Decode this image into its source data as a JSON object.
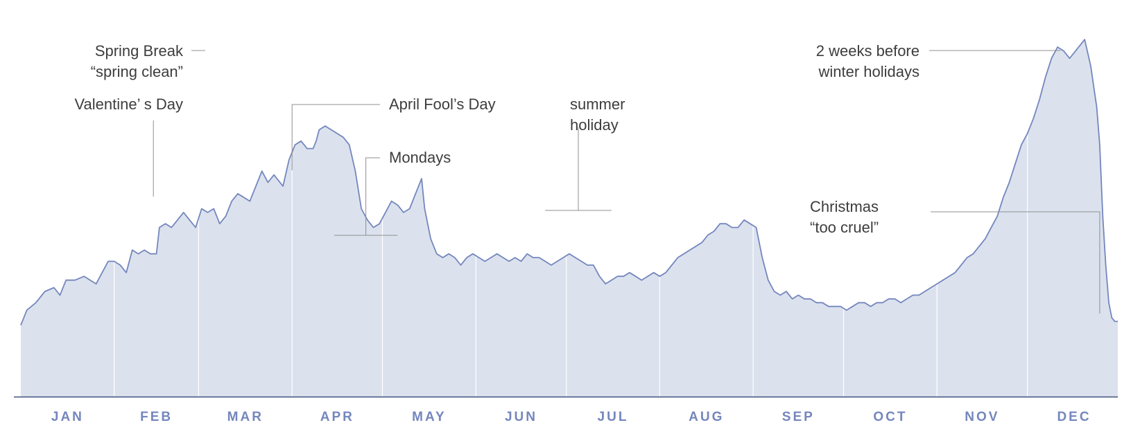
{
  "chart_data": {
    "type": "area",
    "title": "",
    "xlabel": "",
    "ylabel": "",
    "x_unit": "day of year",
    "xlim": [
      1,
      365
    ],
    "ylim": [
      0,
      100
    ],
    "grid": false,
    "vertical_month_dividers": true,
    "months": [
      "JAN",
      "FEB",
      "MAR",
      "APR",
      "MAY",
      "JUN",
      "JUL",
      "AUG",
      "SEP",
      "OCT",
      "NOV",
      "DEC"
    ],
    "colors": {
      "fill": "#dbe2ee",
      "line": "#7486bd",
      "month_label": "#7486bd",
      "divider": "#ffffff",
      "baseline": "#3f4f7a"
    },
    "series": [
      {
        "points": [
          [
            1,
            19
          ],
          [
            3,
            23
          ],
          [
            6,
            25
          ],
          [
            9,
            28
          ],
          [
            12,
            29
          ],
          [
            14,
            27
          ],
          [
            16,
            31
          ],
          [
            19,
            31
          ],
          [
            22,
            32
          ],
          [
            24,
            31
          ],
          [
            26,
            30
          ],
          [
            28,
            33
          ],
          [
            30,
            36
          ],
          [
            32,
            36
          ],
          [
            34,
            35
          ],
          [
            36,
            33
          ],
          [
            38,
            39
          ],
          [
            40,
            38
          ],
          [
            42,
            39
          ],
          [
            44,
            38
          ],
          [
            46,
            38
          ],
          [
            47,
            45
          ],
          [
            49,
            46
          ],
          [
            51,
            45
          ],
          [
            53,
            47
          ],
          [
            55,
            49
          ],
          [
            57,
            47
          ],
          [
            59,
            45
          ],
          [
            61,
            50
          ],
          [
            63,
            49
          ],
          [
            65,
            50
          ],
          [
            67,
            46
          ],
          [
            69,
            48
          ],
          [
            71,
            52
          ],
          [
            73,
            54
          ],
          [
            75,
            53
          ],
          [
            77,
            52
          ],
          [
            79,
            56
          ],
          [
            81,
            60
          ],
          [
            83,
            57
          ],
          [
            85,
            59
          ],
          [
            86,
            58
          ],
          [
            88,
            56
          ],
          [
            90,
            63
          ],
          [
            92,
            67
          ],
          [
            94,
            68
          ],
          [
            96,
            66
          ],
          [
            98,
            66
          ],
          [
            99,
            68
          ],
          [
            100,
            71
          ],
          [
            102,
            72
          ],
          [
            104,
            71
          ],
          [
            106,
            70
          ],
          [
            108,
            69
          ],
          [
            110,
            67
          ],
          [
            112,
            60
          ],
          [
            114,
            50
          ],
          [
            116,
            47
          ],
          [
            118,
            45
          ],
          [
            120,
            46
          ],
          [
            122,
            49
          ],
          [
            124,
            52
          ],
          [
            126,
            51
          ],
          [
            128,
            49
          ],
          [
            130,
            50
          ],
          [
            132,
            54
          ],
          [
            134,
            58
          ],
          [
            135,
            50
          ],
          [
            137,
            42
          ],
          [
            139,
            38
          ],
          [
            141,
            37
          ],
          [
            143,
            38
          ],
          [
            145,
            37
          ],
          [
            147,
            35
          ],
          [
            149,
            37
          ],
          [
            151,
            38
          ],
          [
            153,
            37
          ],
          [
            155,
            36
          ],
          [
            157,
            37
          ],
          [
            159,
            38
          ],
          [
            161,
            37
          ],
          [
            163,
            36
          ],
          [
            165,
            37
          ],
          [
            167,
            36
          ],
          [
            169,
            38
          ],
          [
            171,
            37
          ],
          [
            173,
            37
          ],
          [
            175,
            36
          ],
          [
            177,
            35
          ],
          [
            179,
            36
          ],
          [
            181,
            37
          ],
          [
            183,
            38
          ],
          [
            185,
            37
          ],
          [
            187,
            36
          ],
          [
            189,
            35
          ],
          [
            191,
            35
          ],
          [
            193,
            32
          ],
          [
            195,
            30
          ],
          [
            197,
            31
          ],
          [
            199,
            32
          ],
          [
            201,
            32
          ],
          [
            203,
            33
          ],
          [
            205,
            32
          ],
          [
            207,
            31
          ],
          [
            209,
            32
          ],
          [
            211,
            33
          ],
          [
            213,
            32
          ],
          [
            215,
            33
          ],
          [
            217,
            35
          ],
          [
            219,
            37
          ],
          [
            221,
            38
          ],
          [
            223,
            39
          ],
          [
            225,
            40
          ],
          [
            227,
            41
          ],
          [
            229,
            43
          ],
          [
            231,
            44
          ],
          [
            233,
            46
          ],
          [
            235,
            46
          ],
          [
            237,
            45
          ],
          [
            239,
            45
          ],
          [
            241,
            47
          ],
          [
            243,
            46
          ],
          [
            245,
            45
          ],
          [
            247,
            37
          ],
          [
            249,
            31
          ],
          [
            251,
            28
          ],
          [
            253,
            27
          ],
          [
            255,
            28
          ],
          [
            257,
            26
          ],
          [
            259,
            27
          ],
          [
            261,
            26
          ],
          [
            263,
            26
          ],
          [
            265,
            25
          ],
          [
            267,
            25
          ],
          [
            269,
            24
          ],
          [
            271,
            24
          ],
          [
            273,
            24
          ],
          [
            275,
            23
          ],
          [
            277,
            24
          ],
          [
            279,
            25
          ],
          [
            281,
            25
          ],
          [
            283,
            24
          ],
          [
            285,
            25
          ],
          [
            287,
            25
          ],
          [
            289,
            26
          ],
          [
            291,
            26
          ],
          [
            293,
            25
          ],
          [
            295,
            26
          ],
          [
            297,
            27
          ],
          [
            299,
            27
          ],
          [
            301,
            28
          ],
          [
            303,
            29
          ],
          [
            305,
            30
          ],
          [
            307,
            31
          ],
          [
            309,
            32
          ],
          [
            311,
            33
          ],
          [
            313,
            35
          ],
          [
            315,
            37
          ],
          [
            317,
            38
          ],
          [
            319,
            40
          ],
          [
            321,
            42
          ],
          [
            323,
            45
          ],
          [
            325,
            48
          ],
          [
            327,
            53
          ],
          [
            329,
            57
          ],
          [
            331,
            62
          ],
          [
            333,
            67
          ],
          [
            335,
            70
          ],
          [
            337,
            74
          ],
          [
            339,
            79
          ],
          [
            341,
            85
          ],
          [
            343,
            90
          ],
          [
            345,
            93
          ],
          [
            347,
            92
          ],
          [
            349,
            90
          ],
          [
            351,
            92
          ],
          [
            353,
            94
          ],
          [
            354,
            95
          ],
          [
            356,
            88
          ],
          [
            358,
            77
          ],
          [
            359,
            67
          ],
          [
            360,
            48
          ],
          [
            361,
            35
          ],
          [
            362,
            25
          ],
          [
            363,
            21
          ],
          [
            364,
            20
          ],
          [
            365,
            20
          ]
        ]
      }
    ],
    "annotations": [
      {
        "id": "spring",
        "lines": [
          "Spring Break",
          "“spring clean”"
        ],
        "day": 68
      },
      {
        "id": "valentine",
        "lines": [
          "Valentine’ s Day"
        ],
        "day": 45
      },
      {
        "id": "aprilfool",
        "lines": [
          "April Fool’s Day"
        ],
        "day": 91
      },
      {
        "id": "mondays",
        "lines": [
          "Mondays"
        ],
        "day_range": [
          105,
          126
        ]
      },
      {
        "id": "summer",
        "lines": [
          "summer",
          "holiday"
        ],
        "day_range": [
          175,
          197
        ]
      },
      {
        "id": "winter",
        "lines": [
          "2 weeks before",
          "winter holidays"
        ],
        "day": 346
      },
      {
        "id": "christmas",
        "lines": [
          "Christmas",
          "“too cruel”"
        ],
        "day": 359
      }
    ]
  }
}
